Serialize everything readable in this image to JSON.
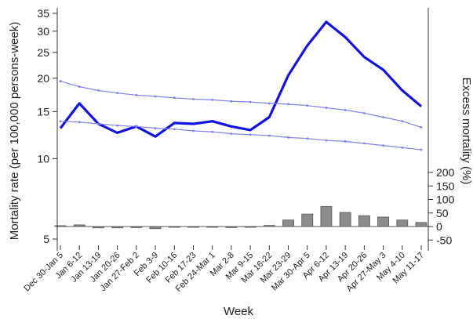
{
  "chart_data": {
    "type": "line+bar",
    "xlabel": "Week",
    "ylabel": "Mortality rate (per 100,000 persons-week)",
    "y2label": "Excess mortality (%)",
    "categories": [
      "Dec 30-Jan 5",
      "Jan 6-12",
      "Jan 13-19",
      "Jan 20-26",
      "Jan 27-Feb 2",
      "Feb 3-9",
      "Feb 10-16",
      "Feb 17-23",
      "Feb 24-Mar 1",
      "Mar 2-8",
      "Mar 9-15",
      "Mar 16-22",
      "Mar 23-29",
      "Mar 30-Apr 5",
      "Apr 6-12",
      "Apr 13-19",
      "Apr 20-26",
      "Apr 27-May 3",
      "May 4-10",
      "May 11-17"
    ],
    "y_scale": "log",
    "ylim": [
      4.5,
      38
    ],
    "yticks": [
      5,
      10,
      15,
      20,
      25,
      30,
      35
    ],
    "y2lim": [
      -75,
      230
    ],
    "y2ticks": [
      -50,
      0,
      50,
      100,
      150,
      200
    ],
    "series": [
      {
        "kind": "line",
        "color": "#1212e0",
        "values": [
          13.0,
          16.1,
          13.5,
          12.5,
          13.2,
          12.1,
          13.6,
          13.5,
          13.8,
          13.2,
          12.8,
          14.3,
          20.5,
          26.5,
          32.5,
          28.5,
          24.0,
          21.5,
          18.0,
          15.7
        ]
      },
      {
        "kind": "line",
        "color": "#7f7fee",
        "values": [
          19.5,
          18.6,
          18.0,
          17.6,
          17.3,
          17.1,
          16.9,
          16.7,
          16.6,
          16.4,
          16.3,
          16.1,
          16.0,
          15.8,
          15.5,
          15.2,
          14.8,
          14.3,
          13.8,
          13.1
        ]
      },
      {
        "kind": "line",
        "color": "#7f7fee",
        "values": [
          13.8,
          13.7,
          13.5,
          13.3,
          13.2,
          13.0,
          12.9,
          12.7,
          12.6,
          12.4,
          12.3,
          12.2,
          12.0,
          11.9,
          11.7,
          11.6,
          11.4,
          11.2,
          11.0,
          10.8
        ]
      },
      {
        "kind": "bar",
        "axis": "y2",
        "color": "#8c8c8c",
        "values": [
          3,
          6,
          -5,
          -5,
          -4,
          -8,
          -1,
          -3,
          -2,
          -4,
          -3,
          4,
          24,
          46,
          74,
          52,
          40,
          35,
          24,
          15
        ]
      }
    ]
  }
}
